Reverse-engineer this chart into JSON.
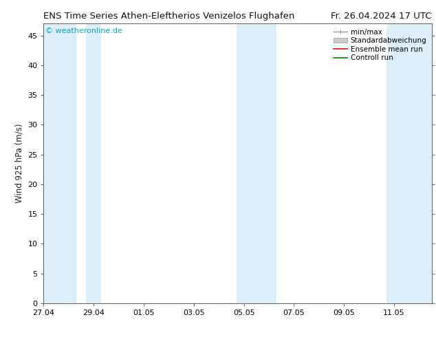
{
  "title_left": "ENS Time Series Athen-Eleftherios Venizelos Flughafen",
  "title_right": "Fr. 26.04.2024 17 UTC",
  "ylabel": "Wind 925 hPa (m/s)",
  "watermark": "© weatheronline.de",
  "watermark_color": "#00aacc",
  "ylim": [
    0,
    47
  ],
  "yticks": [
    0,
    5,
    10,
    15,
    20,
    25,
    30,
    35,
    40,
    45
  ],
  "xtick_labels": [
    "27.04",
    "29.04",
    "01.05",
    "03.05",
    "05.05",
    "07.05",
    "09.05",
    "11.05"
  ],
  "x_num_ticks": 8,
  "xlim": [
    0,
    15.5
  ],
  "xtick_positions": [
    0,
    2,
    4,
    6,
    8,
    10,
    12,
    14
  ],
  "background_color": "#ffffff",
  "plot_bg_color": "#ffffff",
  "shaded_bands": [
    {
      "xstart": 0.0,
      "xend": 1.3,
      "color": "#ddeef8"
    },
    {
      "xstart": 1.7,
      "xend": 2.3,
      "color": "#ddeef8"
    },
    {
      "xstart": 7.7,
      "xend": 9.3,
      "color": "#ddeef8"
    },
    {
      "xstart": 13.7,
      "xend": 15.5,
      "color": "#ddeef8"
    }
  ],
  "legend_entries": [
    {
      "label": "min/max",
      "color": "#aaaaaa"
    },
    {
      "label": "Standardabweichung",
      "color": "#cccccc"
    },
    {
      "label": "Ensemble mean run",
      "color": "#ff0000"
    },
    {
      "label": "Controll run",
      "color": "#008800"
    }
  ],
  "title_fontsize": 9.5,
  "ylabel_fontsize": 8.5,
  "tick_fontsize": 8,
  "watermark_fontsize": 8,
  "legend_fontsize": 7.5
}
